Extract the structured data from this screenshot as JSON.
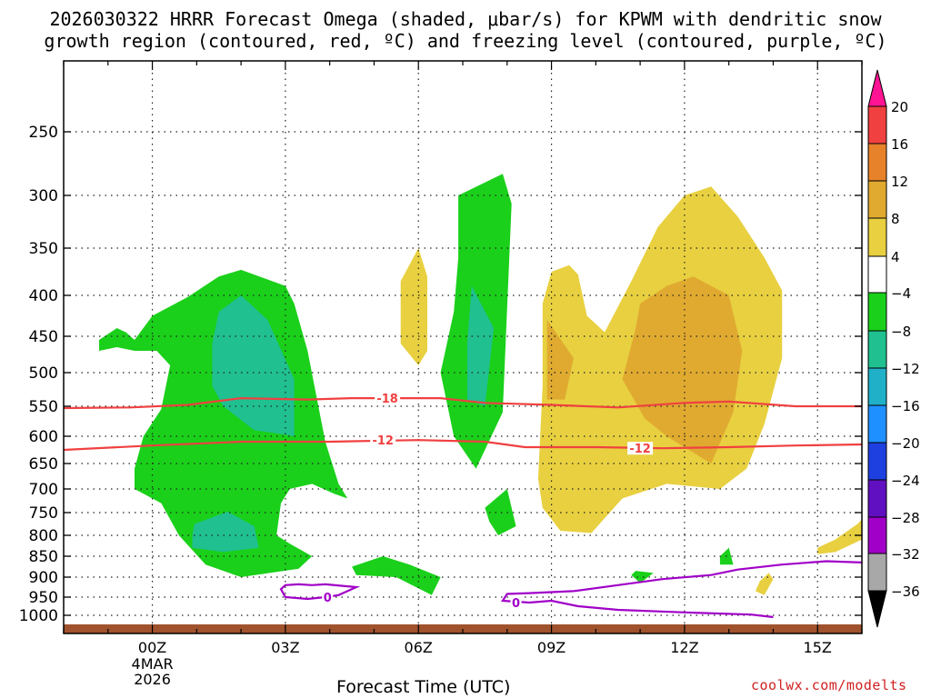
{
  "title_line1": "2026030322 HRRR Forecast Omega (shaded, μbar/s) for KPWM with dendritic snow",
  "title_line2": "growth region (contoured, red, ºC) and freezing level (contoured, purple, ºC)",
  "xlabel": "Forecast Time (UTC)",
  "credit": "coolwx.com/modelts",
  "chart_data": {
    "type": "time-height cross section (shaded contours)",
    "y_axis": {
      "quantity": "pressure (hPa)",
      "reversed": true,
      "ticks": [
        250,
        300,
        350,
        400,
        450,
        500,
        550,
        600,
        650,
        700,
        750,
        800,
        850,
        900,
        950,
        1000
      ],
      "range": [
        200,
        1030
      ]
    },
    "x_axis": {
      "quantity": "forecast hour offset from 00Z 4 Mar 2026",
      "tick_hours": [
        0,
        3,
        6,
        9,
        12,
        15
      ],
      "tick_labels": [
        "00Z",
        "03Z",
        "06Z",
        "09Z",
        "12Z",
        "15Z"
      ],
      "date_label": [
        "4MAR",
        "2026"
      ],
      "range": [
        -2,
        16
      ]
    },
    "grid": "dotted",
    "colorbar": {
      "ticks": [
        "20",
        "16",
        "12",
        "8",
        "4",
        "−4",
        "−8",
        "−12",
        "−16",
        "−20",
        "−24",
        "−28",
        "−32",
        "−36"
      ],
      "colors": [
        "#ff1493",
        "#f04040",
        "#e8822a",
        "#e0aa30",
        "#e8d040",
        "#ffffff",
        "#1ad01a",
        "#20c090",
        "#20b0c8",
        "#1e90ff",
        "#1e40e0",
        "#6010c0",
        "#a000c8",
        "#a8a8a8",
        "#000000"
      ]
    },
    "shaded_regions": [
      {
        "class": "-8 to -4",
        "color": "#1ad01a",
        "polygon": [
          [
            -1.2,
            455
          ],
          [
            -0.8,
            440
          ],
          [
            -0.6,
            445
          ],
          [
            -0.4,
            455
          ],
          [
            0,
            425
          ],
          [
            0.8,
            402
          ],
          [
            1.5,
            380
          ],
          [
            2,
            373
          ],
          [
            3,
            390
          ],
          [
            3.2,
            410
          ],
          [
            3.5,
            470
          ],
          [
            3.9,
            610
          ],
          [
            4.2,
            690
          ],
          [
            4.4,
            720
          ],
          [
            4.1,
            710
          ],
          [
            3.6,
            690
          ],
          [
            3.1,
            700
          ],
          [
            2.9,
            730
          ],
          [
            2.8,
            800
          ],
          [
            3.1,
            820
          ],
          [
            3.6,
            850
          ],
          [
            3.3,
            880
          ],
          [
            2,
            900
          ],
          [
            1.2,
            870
          ],
          [
            0.6,
            800
          ],
          [
            0.2,
            730
          ],
          [
            -0.4,
            700
          ],
          [
            -0.4,
            660
          ],
          [
            -0.2,
            600
          ],
          [
            0.2,
            555
          ],
          [
            0.4,
            490
          ],
          [
            0.1,
            470
          ],
          [
            -0.4,
            470
          ],
          [
            -0.8,
            465
          ],
          [
            -1.2,
            470
          ]
        ]
      },
      {
        "class": "-12 to -8",
        "color": "#20c090",
        "polygon": [
          [
            1.35,
            460
          ],
          [
            1.5,
            420
          ],
          [
            2,
            400
          ],
          [
            2.6,
            430
          ],
          [
            3.2,
            510
          ],
          [
            3.2,
            600
          ],
          [
            2.8,
            595
          ],
          [
            2.3,
            590
          ],
          [
            1.6,
            550
          ],
          [
            1.35,
            520
          ]
        ]
      },
      {
        "class": "-12 to -8",
        "color": "#20c090",
        "polygon": [
          [
            0.9,
            800
          ],
          [
            0.95,
            775
          ],
          [
            1.7,
            748
          ],
          [
            2.3,
            780
          ],
          [
            2.4,
            830
          ],
          [
            1.6,
            840
          ],
          [
            0.9,
            830
          ]
        ]
      },
      {
        "class": "-8 to -4",
        "color": "#1ad01a",
        "polygon": [
          [
            4.5,
            875
          ],
          [
            5.2,
            850
          ],
          [
            5.8,
            870
          ],
          [
            6.5,
            900
          ],
          [
            6.3,
            945
          ],
          [
            5.5,
            900
          ],
          [
            4.6,
            895
          ]
        ]
      },
      {
        "class": "-8 to -4",
        "color": "#1ad01a",
        "polygon": [
          [
            6.9,
            300
          ],
          [
            7.9,
            283
          ],
          [
            8.1,
            308
          ],
          [
            7.9,
            560
          ],
          [
            7.3,
            660
          ],
          [
            6.8,
            600
          ],
          [
            6.5,
            500
          ],
          [
            6.8,
            420
          ],
          [
            6.9,
            360
          ]
        ]
      },
      {
        "class": "-12 to -8",
        "color": "#20c090",
        "polygon": [
          [
            7.2,
            390
          ],
          [
            7.7,
            440
          ],
          [
            7.5,
            550
          ],
          [
            7.1,
            540
          ],
          [
            7.1,
            460
          ]
        ]
      },
      {
        "class": "-8 to -4",
        "color": "#1ad01a",
        "polygon": [
          [
            7.5,
            740
          ],
          [
            8.0,
            700
          ],
          [
            8.2,
            780
          ],
          [
            7.8,
            800
          ],
          [
            7.6,
            770
          ]
        ]
      },
      {
        "class": "-8 to -4",
        "color": "#1ad01a",
        "polygon": [
          [
            10.9,
            885
          ],
          [
            11.3,
            890
          ],
          [
            11.0,
            915
          ],
          [
            10.8,
            895
          ]
        ]
      },
      {
        "class": "-8 to -4",
        "color": "#1ad01a",
        "polygon": [
          [
            12.8,
            850
          ],
          [
            13.0,
            830
          ],
          [
            13.1,
            870
          ],
          [
            12.8,
            870
          ]
        ]
      },
      {
        "class": "4 to 8",
        "color": "#e8d040",
        "polygon": [
          [
            9.6,
            378
          ],
          [
            9.8,
            425
          ],
          [
            10.2,
            445
          ],
          [
            10.8,
            385
          ],
          [
            11.4,
            330
          ],
          [
            12.0,
            300
          ],
          [
            12.6,
            293
          ],
          [
            13.2,
            320
          ],
          [
            13.8,
            360
          ],
          [
            14.2,
            395
          ],
          [
            14.2,
            480
          ],
          [
            13.8,
            580
          ],
          [
            13.4,
            660
          ],
          [
            12.8,
            700
          ],
          [
            11.6,
            690
          ],
          [
            10.6,
            720
          ],
          [
            9.9,
            795
          ],
          [
            9.2,
            790
          ],
          [
            8.8,
            740
          ],
          [
            8.7,
            680
          ],
          [
            8.8,
            520
          ],
          [
            8.8,
            410
          ],
          [
            9.0,
            375
          ],
          [
            9.4,
            368
          ]
        ]
      },
      {
        "class": "8 to 12",
        "color": "#e0aa30",
        "polygon": [
          [
            11.0,
            410
          ],
          [
            11.6,
            390
          ],
          [
            12.2,
            380
          ],
          [
            13.0,
            400
          ],
          [
            13.3,
            470
          ],
          [
            13.1,
            560
          ],
          [
            12.6,
            650
          ],
          [
            12.2,
            630
          ],
          [
            11.6,
            600
          ],
          [
            11.1,
            570
          ],
          [
            10.6,
            510
          ],
          [
            10.9,
            440
          ]
        ]
      },
      {
        "class": "8 to 12",
        "color": "#e0aa30",
        "polygon": [
          [
            8.9,
            430
          ],
          [
            9.5,
            480
          ],
          [
            9.3,
            540
          ],
          [
            8.9,
            540
          ]
        ]
      },
      {
        "class": "4 to 8",
        "color": "#e8d040",
        "polygon": [
          [
            5.6,
            385
          ],
          [
            6.0,
            350
          ],
          [
            6.2,
            380
          ],
          [
            6.2,
            470
          ],
          [
            6.0,
            490
          ],
          [
            5.6,
            460
          ]
        ]
      },
      {
        "class": "4 to 8",
        "color": "#e8d040",
        "polygon": [
          [
            15.0,
            830
          ],
          [
            15.4,
            810
          ],
          [
            15.9,
            775
          ],
          [
            16.0,
            765
          ],
          [
            16.0,
            810
          ],
          [
            15.4,
            840
          ],
          [
            15.0,
            845
          ]
        ]
      },
      {
        "class": "4 to 8",
        "color": "#e8d040",
        "polygon": [
          [
            13.7,
            910
          ],
          [
            13.9,
            890
          ],
          [
            14.0,
            905
          ],
          [
            13.8,
            945
          ],
          [
            13.6,
            935
          ]
        ]
      }
    ],
    "contours": [
      {
        "name": "dendritic snow growth region",
        "level": "-18",
        "label": "-18",
        "color": "#f04040",
        "points": [
          [
            -2,
            553
          ],
          [
            -0.5,
            552
          ],
          [
            0.8,
            548
          ],
          [
            2,
            538
          ],
          [
            3.5,
            540
          ],
          [
            4.5,
            538
          ],
          [
            6.5,
            538
          ],
          [
            7.5,
            545
          ],
          [
            9,
            548
          ],
          [
            10.5,
            552
          ],
          [
            12,
            545
          ],
          [
            13,
            543
          ],
          [
            14.5,
            550
          ],
          [
            16,
            550
          ]
        ],
        "label_at": [
          5.3,
          538
        ]
      },
      {
        "name": "dendritic snow growth region",
        "level": "-12",
        "label": "-12",
        "color": "#f04040",
        "points": [
          [
            -2,
            625
          ],
          [
            0,
            617
          ],
          [
            2,
            610
          ],
          [
            4,
            610
          ],
          [
            6,
            607
          ],
          [
            7.5,
            610
          ],
          [
            8.4,
            620
          ],
          [
            10,
            620
          ],
          [
            11.5,
            622
          ],
          [
            13,
            620
          ],
          [
            14.5,
            617
          ],
          [
            16,
            615
          ]
        ],
        "label_at": [
          5.2,
          607
        ],
        "label2_at": [
          11.0,
          622
        ]
      },
      {
        "name": "freezing level",
        "level": "0",
        "label": "0",
        "color": "#a000c8",
        "points": [
          [
            3.6,
            920
          ],
          [
            3.9,
            918
          ],
          [
            4.6,
            925
          ],
          [
            4.2,
            945
          ],
          [
            3.9,
            950
          ],
          [
            3.5,
            955
          ],
          [
            3.0,
            950
          ],
          [
            2.9,
            930
          ],
          [
            3.0,
            920
          ],
          [
            3.3,
            918
          ],
          [
            3.6,
            920
          ]
        ],
        "label_at": [
          3.95,
          950
        ]
      },
      {
        "name": "freezing level",
        "level": "0",
        "label": "0",
        "color": "#a000c8",
        "points": [
          [
            16,
            865
          ],
          [
            15.2,
            862
          ],
          [
            14.2,
            870
          ],
          [
            13.2,
            882
          ],
          [
            12.6,
            895
          ],
          [
            11.5,
            905
          ],
          [
            10.5,
            920
          ],
          [
            9.5,
            935
          ],
          [
            8.5,
            940
          ],
          [
            8.0,
            942
          ],
          [
            7.9,
            960
          ],
          [
            8.5,
            965
          ],
          [
            9.0,
            960
          ],
          [
            9.6,
            975
          ],
          [
            10.5,
            985
          ],
          [
            12.0,
            992
          ],
          [
            13.5,
            998
          ],
          [
            14.0,
            1005
          ]
        ],
        "label_at": [
          8.2,
          965
        ]
      }
    ]
  }
}
